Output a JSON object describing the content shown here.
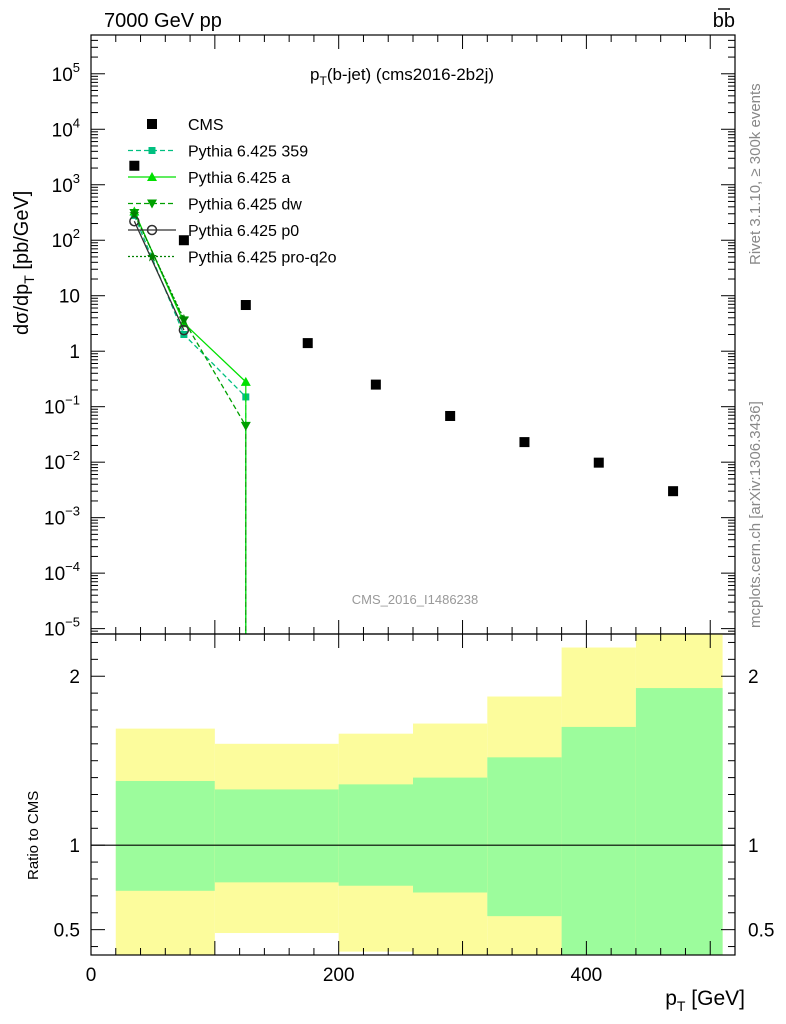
{
  "header": {
    "left": "7000 GeV pp",
    "right": "bb"
  },
  "side_text": {
    "rivet": "Rivet 3.1.10, ≥ 300k events",
    "mcplots": "mcplots.cern.ch [arXiv:1306.3436]"
  },
  "watermark": "CMS_2016_I1486238",
  "chart_data": [
    {
      "type": "scatter",
      "title": "pT(b-jet) (cms2016-2b2j)",
      "title_main": "p",
      "title_sub": "T",
      "title_rest": "(b-jet) (cms2016-2b2j)",
      "ylabel": "dσ/dp_T [pb/GeV]",
      "y_log": true,
      "ylim": [
        8e-06,
        500000
      ],
      "xlim": [
        0,
        520
      ],
      "y_ticks": [
        {
          "v": 100000,
          "label": "10",
          "exp": "5"
        },
        {
          "v": 10000,
          "label": "10",
          "exp": "4"
        },
        {
          "v": 1000,
          "label": "10",
          "exp": "3"
        },
        {
          "v": 100,
          "label": "10",
          "exp": "2"
        },
        {
          "v": 10,
          "label": "10",
          "exp": ""
        },
        {
          "v": 1,
          "label": "1",
          "exp": ""
        },
        {
          "v": 0.1,
          "label": "10",
          "exp": "−1"
        },
        {
          "v": 0.01,
          "label": "10",
          "exp": "−2"
        },
        {
          "v": 0.001,
          "label": "10",
          "exp": "−3"
        },
        {
          "v": 0.0001,
          "label": "10",
          "exp": "−4"
        },
        {
          "v": 1e-05,
          "label": "10",
          "exp": "−5"
        }
      ],
      "series": [
        {
          "name": "CMS",
          "color": "#000000",
          "marker": "square",
          "line": "none",
          "x": [
            35,
            75,
            125,
            175,
            230,
            290,
            350,
            410,
            470
          ],
          "y": [
            2200,
            100,
            6.8,
            1.4,
            0.25,
            0.068,
            0.023,
            0.0098,
            0.003
          ]
        },
        {
          "name": "Pythia 6.425 359",
          "color": "#00c080",
          "marker": "square-small",
          "line": "dashed",
          "x": [
            35,
            75,
            125
          ],
          "y": [
            280,
            2.0,
            0.15
          ]
        },
        {
          "name": "Pythia 6.425 a",
          "color": "#00e000",
          "marker": "triangle-up",
          "line": "solid",
          "x": [
            35,
            75,
            125
          ],
          "y": [
            330,
            3.2,
            0.28
          ]
        },
        {
          "name": "Pythia 6.425 dw",
          "color": "#00a000",
          "marker": "triangle-down",
          "line": "dashed",
          "x": [
            35,
            75,
            125
          ],
          "y": [
            310,
            3.6,
            0.045
          ]
        },
        {
          "name": "Pythia 6.425 p0",
          "color": "#303030",
          "marker": "circle-open",
          "line": "solid",
          "x": [
            35,
            75
          ],
          "y": [
            220,
            2.4
          ]
        },
        {
          "name": "Pythia 6.425 pro-q2o",
          "color": "#008000",
          "marker": "star",
          "line": "dotted",
          "x": [
            35,
            75
          ],
          "y": [
            300,
            3.8
          ]
        }
      ],
      "legend": "top-left"
    },
    {
      "type": "area",
      "ylabel": "Ratio to CMS",
      "xlabel": "p_T [GeV]",
      "xlabel_main": "p",
      "xlabel_sub": "T",
      "xlabel_rest": " [GeV]",
      "xlim": [
        0,
        520
      ],
      "ylim": [
        0.35,
        2.25
      ],
      "x_ticks": [
        0,
        200,
        400
      ],
      "y_ticks": [
        0.5,
        1,
        2
      ],
      "reference_line": 1,
      "bins": [
        {
          "x0": 20,
          "x1": 100,
          "green_lo": 0.73,
          "green_hi": 1.38,
          "yellow_lo": 0.35,
          "yellow_hi": 1.69
        },
        {
          "x0": 100,
          "x1": 200,
          "green_lo": 0.78,
          "green_hi": 1.33,
          "yellow_lo": 0.48,
          "yellow_hi": 1.6
        },
        {
          "x0": 200,
          "x1": 260,
          "green_lo": 0.76,
          "green_hi": 1.36,
          "yellow_lo": 0.37,
          "yellow_hi": 1.66
        },
        {
          "x0": 260,
          "x1": 320,
          "green_lo": 0.72,
          "green_hi": 1.4,
          "yellow_lo": 0.35,
          "yellow_hi": 1.72
        },
        {
          "x0": 320,
          "x1": 380,
          "green_lo": 0.58,
          "green_hi": 1.52,
          "yellow_lo": 0.35,
          "yellow_hi": 1.88
        },
        {
          "x0": 380,
          "x1": 440,
          "green_lo": 0.35,
          "green_hi": 1.7,
          "yellow_lo": 0.35,
          "yellow_hi": 2.17
        },
        {
          "x0": 440,
          "x1": 510,
          "green_lo": 0.35,
          "green_hi": 1.93,
          "yellow_lo": 0.35,
          "yellow_hi": 2.25
        }
      ],
      "band_colors": {
        "inner": "#9cfc9c",
        "outer": "#fcfc9c"
      }
    }
  ]
}
